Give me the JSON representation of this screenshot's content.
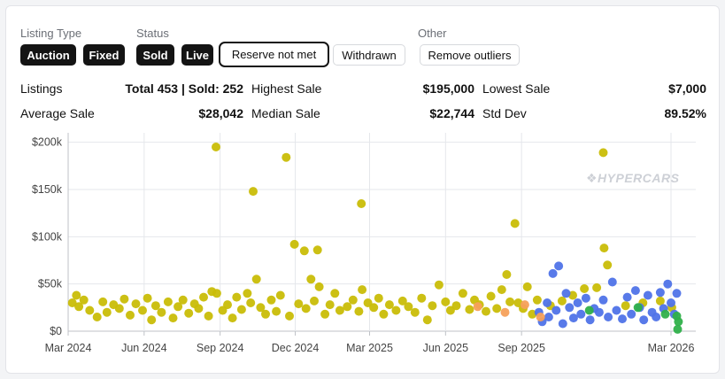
{
  "filters": {
    "listing_type": {
      "label": "Listing Type",
      "options": [
        "Auction",
        "Fixed"
      ]
    },
    "status": {
      "label": "Status",
      "options": [
        "Sold",
        "Live",
        "Reserve not met",
        "Withdrawn"
      ]
    },
    "other": {
      "label": "Other",
      "options": [
        "Remove outliers"
      ]
    }
  },
  "stats": {
    "listings_label": "Listings",
    "listings_value": "Total 453 | Sold: 252",
    "highest_label": "Highest Sale",
    "highest_value": "$195,000",
    "lowest_label": "Lowest Sale",
    "lowest_value": "$7,000",
    "average_label": "Average Sale",
    "average_value": "$28,042",
    "median_label": "Median Sale",
    "median_value": "$22,744",
    "std_label": "Std Dev",
    "std_value": "89.52%"
  },
  "watermark": "❖HYPERCARS",
  "chart_data": {
    "type": "scatter",
    "title": "",
    "xlabel": "",
    "ylabel": "",
    "grid": true,
    "ylim": [
      0,
      210000
    ],
    "xlim": [
      "2024-03-01",
      "2026-03-31"
    ],
    "x_ticks": [
      {
        "date": "2024-03-01",
        "label": "Mar 2024"
      },
      {
        "date": "2024-06-01",
        "label": "Jun 2024"
      },
      {
        "date": "2024-09-01",
        "label": "Sep 2024"
      },
      {
        "date": "2024-12-01",
        "label": "Dec 2024"
      },
      {
        "date": "2025-03-01",
        "label": "Mar 2025"
      },
      {
        "date": "2025-06-01",
        "label": "Jun 2025"
      },
      {
        "date": "2025-09-01",
        "label": "Sep 2025"
      },
      {
        "date": "2026-03-01",
        "label": "Mar 2026"
      }
    ],
    "y_ticks": [
      {
        "value": 0,
        "label": "$0"
      },
      {
        "value": 50000,
        "label": "$50k"
      },
      {
        "value": 100000,
        "label": "$100k"
      },
      {
        "value": 150000,
        "label": "$150k"
      },
      {
        "value": 200000,
        "label": "$200k"
      }
    ],
    "series": [
      {
        "color": "#c9bd07",
        "points": [
          [
            "2024-03-06",
            30000
          ],
          [
            "2024-03-11",
            38000
          ],
          [
            "2024-03-14",
            26000
          ],
          [
            "2024-03-20",
            33000
          ],
          [
            "2024-03-27",
            22000
          ],
          [
            "2024-04-05",
            15000
          ],
          [
            "2024-04-12",
            31000
          ],
          [
            "2024-04-17",
            20000
          ],
          [
            "2024-04-25",
            28000
          ],
          [
            "2024-05-02",
            24000
          ],
          [
            "2024-05-08",
            34000
          ],
          [
            "2024-05-15",
            17000
          ],
          [
            "2024-05-22",
            29000
          ],
          [
            "2024-05-30",
            22000
          ],
          [
            "2024-06-05",
            35000
          ],
          [
            "2024-06-10",
            12000
          ],
          [
            "2024-06-15",
            27000
          ],
          [
            "2024-06-22",
            20000
          ],
          [
            "2024-06-30",
            31000
          ],
          [
            "2024-07-06",
            14000
          ],
          [
            "2024-07-12",
            26000
          ],
          [
            "2024-07-18",
            33000
          ],
          [
            "2024-07-25",
            19000
          ],
          [
            "2024-08-01",
            29000
          ],
          [
            "2024-08-06",
            24000
          ],
          [
            "2024-08-12",
            36000
          ],
          [
            "2024-08-18",
            16000
          ],
          [
            "2024-08-22",
            42000
          ],
          [
            "2024-08-28",
            40000
          ],
          [
            "2024-08-27",
            195000
          ],
          [
            "2024-09-04",
            22000
          ],
          [
            "2024-09-10",
            28000
          ],
          [
            "2024-09-16",
            14000
          ],
          [
            "2024-09-21",
            36000
          ],
          [
            "2024-09-27",
            23000
          ],
          [
            "2024-10-04",
            40000
          ],
          [
            "2024-10-08",
            30000
          ],
          [
            "2024-10-11",
            148000
          ],
          [
            "2024-10-15",
            55000
          ],
          [
            "2024-10-20",
            25000
          ],
          [
            "2024-10-26",
            18000
          ],
          [
            "2024-11-02",
            33000
          ],
          [
            "2024-11-08",
            21000
          ],
          [
            "2024-11-13",
            38000
          ],
          [
            "2024-11-20",
            184000
          ],
          [
            "2024-11-24",
            16000
          ],
          [
            "2024-11-30",
            92000
          ],
          [
            "2024-12-05",
            29000
          ],
          [
            "2024-12-12",
            85000
          ],
          [
            "2024-12-14",
            24000
          ],
          [
            "2024-12-20",
            55000
          ],
          [
            "2024-12-24",
            32000
          ],
          [
            "2024-12-28",
            86000
          ],
          [
            "2024-12-30",
            47000
          ],
          [
            "2025-01-06",
            18000
          ],
          [
            "2025-01-12",
            28000
          ],
          [
            "2025-01-18",
            40000
          ],
          [
            "2025-01-24",
            22000
          ],
          [
            "2025-02-02",
            26000
          ],
          [
            "2025-02-09",
            33000
          ],
          [
            "2025-02-16",
            21000
          ],
          [
            "2025-02-20",
            44000
          ],
          [
            "2025-02-19",
            135000
          ],
          [
            "2025-02-27",
            30000
          ],
          [
            "2025-03-06",
            25000
          ],
          [
            "2025-03-12",
            35000
          ],
          [
            "2025-03-18",
            18000
          ],
          [
            "2025-03-25",
            28000
          ],
          [
            "2025-04-02",
            22000
          ],
          [
            "2025-04-10",
            32000
          ],
          [
            "2025-04-17",
            26000
          ],
          [
            "2025-04-25",
            20000
          ],
          [
            "2025-05-03",
            35000
          ],
          [
            "2025-05-10",
            12000
          ],
          [
            "2025-05-16",
            27000
          ],
          [
            "2025-05-24",
            49000
          ],
          [
            "2025-06-01",
            31000
          ],
          [
            "2025-06-07",
            22000
          ],
          [
            "2025-06-14",
            27000
          ],
          [
            "2025-06-22",
            40000
          ],
          [
            "2025-06-30",
            23000
          ],
          [
            "2025-07-06",
            33000
          ],
          [
            "2025-07-12",
            28000
          ],
          [
            "2025-07-20",
            21000
          ],
          [
            "2025-07-26",
            37000
          ],
          [
            "2025-08-02",
            24000
          ],
          [
            "2025-08-08",
            44000
          ],
          [
            "2025-08-14",
            60000
          ],
          [
            "2025-08-18",
            31000
          ],
          [
            "2025-08-24",
            114000
          ],
          [
            "2025-08-28",
            30000
          ],
          [
            "2025-09-03",
            24000
          ],
          [
            "2025-09-08",
            47000
          ],
          [
            "2025-09-14",
            18000
          ],
          [
            "2025-09-20",
            33000
          ],
          [
            "2025-10-06",
            27000
          ],
          [
            "2025-10-20",
            32000
          ],
          [
            "2025-11-02",
            38000
          ],
          [
            "2025-11-16",
            45000
          ],
          [
            "2025-12-01",
            46000
          ],
          [
            "2025-12-10",
            88000
          ],
          [
            "2025-12-14",
            70000
          ],
          [
            "2025-12-09",
            189000
          ],
          [
            "2026-01-05",
            27000
          ],
          [
            "2026-01-26",
            30000
          ],
          [
            "2026-02-16",
            32000
          ],
          [
            "2026-03-02",
            25000
          ]
        ]
      },
      {
        "color": "#4f73e8",
        "points": [
          [
            "2025-09-22",
            20000
          ],
          [
            "2025-09-26",
            10000
          ],
          [
            "2025-10-02",
            30000
          ],
          [
            "2025-10-04",
            15000
          ],
          [
            "2025-10-09",
            61000
          ],
          [
            "2025-10-13",
            22000
          ],
          [
            "2025-10-16",
            69000
          ],
          [
            "2025-10-21",
            8000
          ],
          [
            "2025-10-25",
            40000
          ],
          [
            "2025-10-29",
            25000
          ],
          [
            "2025-11-03",
            14000
          ],
          [
            "2025-11-08",
            30000
          ],
          [
            "2025-11-12",
            18000
          ],
          [
            "2025-11-18",
            35000
          ],
          [
            "2025-11-23",
            12000
          ],
          [
            "2025-11-28",
            24000
          ],
          [
            "2025-12-04",
            20000
          ],
          [
            "2025-12-09",
            33000
          ],
          [
            "2025-12-15",
            15000
          ],
          [
            "2025-12-20",
            52000
          ],
          [
            "2025-12-25",
            22000
          ],
          [
            "2026-01-01",
            13000
          ],
          [
            "2026-01-07",
            36000
          ],
          [
            "2026-01-12",
            18000
          ],
          [
            "2026-01-17",
            43000
          ],
          [
            "2026-01-22",
            25000
          ],
          [
            "2026-01-27",
            12000
          ],
          [
            "2026-02-01",
            38000
          ],
          [
            "2026-02-06",
            20000
          ],
          [
            "2026-02-11",
            15000
          ],
          [
            "2026-02-16",
            41000
          ],
          [
            "2026-02-20",
            24000
          ],
          [
            "2026-02-25",
            50000
          ],
          [
            "2026-03-01",
            30000
          ],
          [
            "2026-03-05",
            18000
          ],
          [
            "2026-03-08",
            40000
          ]
        ]
      },
      {
        "color": "#2fb04a",
        "points": [
          [
            "2025-11-22",
            22000
          ],
          [
            "2026-01-20",
            25000
          ],
          [
            "2026-02-22",
            18000
          ],
          [
            "2026-03-08",
            16000
          ],
          [
            "2026-03-10",
            10000
          ],
          [
            "2026-03-09",
            2000
          ]
        ]
      },
      {
        "color": "#f5a05a",
        "points": [
          [
            "2025-07-10",
            26000
          ],
          [
            "2025-08-12",
            20000
          ],
          [
            "2025-09-05",
            28000
          ],
          [
            "2025-09-24",
            15000
          ]
        ]
      }
    ]
  }
}
